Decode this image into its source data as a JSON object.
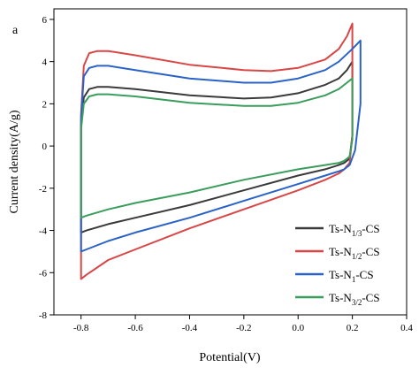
{
  "panel_label": "a",
  "colors": {
    "axis": "#000000",
    "Ts-N1/3-CS": "#3a3a3a",
    "Ts-N1/2-CS": "#d94646",
    "Ts-N1-CS": "#2a62c7",
    "Ts-N3/2-CS": "#3a9d5c"
  },
  "chart_data": {
    "type": "line",
    "title": "",
    "xlabel": "Potential(V)",
    "ylabel": "Current density(A/g)",
    "xlim": [
      -0.9,
      0.4
    ],
    "ylim": [
      -8,
      6.5
    ],
    "xticks": [
      -0.8,
      -0.6,
      -0.4,
      -0.2,
      0.0,
      0.2,
      0.4
    ],
    "xtick_labels": [
      "-0.8",
      "-0.6",
      "-0.4",
      "-0.2",
      "0.0",
      "0.2",
      "0.4"
    ],
    "yticks": [
      -8,
      -6,
      -4,
      -2,
      0,
      2,
      4,
      6
    ],
    "ytick_labels": [
      "-8",
      "-6",
      "-4",
      "-2",
      "0",
      "2",
      "4",
      "6"
    ],
    "grid": false,
    "legend_position": "bottom-right",
    "series": [
      {
        "name": "Ts-N1/3-CS",
        "legend_main": "Ts-N",
        "legend_sub": "1/3",
        "legend_tail": "-CS",
        "x": [
          -0.8,
          -0.79,
          -0.77,
          -0.74,
          -0.7,
          -0.6,
          -0.4,
          -0.2,
          -0.1,
          0.0,
          0.1,
          0.15,
          0.18,
          0.2,
          0.2,
          0.19,
          0.17,
          0.15,
          0.1,
          0.0,
          -0.2,
          -0.4,
          -0.6,
          -0.7,
          -0.78,
          -0.8,
          -0.8
        ],
        "y": [
          1.0,
          2.3,
          2.7,
          2.8,
          2.8,
          2.7,
          2.4,
          2.25,
          2.3,
          2.5,
          2.9,
          3.2,
          3.6,
          4.0,
          0.5,
          -0.6,
          -0.8,
          -0.9,
          -1.1,
          -1.4,
          -2.1,
          -2.8,
          -3.4,
          -3.7,
          -4.0,
          -4.1,
          1.0
        ]
      },
      {
        "name": "Ts-N1/2-CS",
        "legend_main": "Ts-N",
        "legend_sub": "1/2",
        "legend_tail": "-CS",
        "x": [
          -0.8,
          -0.79,
          -0.77,
          -0.74,
          -0.7,
          -0.6,
          -0.4,
          -0.2,
          -0.1,
          0.0,
          0.1,
          0.15,
          0.18,
          0.2,
          0.2,
          0.19,
          0.17,
          0.15,
          0.1,
          0.0,
          -0.2,
          -0.4,
          -0.6,
          -0.7,
          -0.78,
          -0.8,
          -0.8
        ],
        "y": [
          1.5,
          3.8,
          4.4,
          4.5,
          4.5,
          4.3,
          3.85,
          3.6,
          3.55,
          3.7,
          4.1,
          4.6,
          5.2,
          5.8,
          0.5,
          -0.8,
          -1.1,
          -1.3,
          -1.6,
          -2.1,
          -3.0,
          -3.9,
          -4.9,
          -5.4,
          -6.1,
          -6.3,
          1.5
        ]
      },
      {
        "name": "Ts-N1-CS",
        "legend_main": "Ts-N",
        "legend_sub": "1",
        "legend_tail": "-CS",
        "x": [
          -0.8,
          -0.79,
          -0.77,
          -0.74,
          -0.7,
          -0.6,
          -0.4,
          -0.2,
          -0.1,
          0.0,
          0.1,
          0.15,
          0.2,
          0.23,
          0.23,
          0.21,
          0.19,
          0.17,
          0.15,
          0.1,
          0.0,
          -0.2,
          -0.4,
          -0.6,
          -0.7,
          -0.78,
          -0.8,
          -0.8
        ],
        "y": [
          1.3,
          3.3,
          3.7,
          3.8,
          3.8,
          3.6,
          3.2,
          3.0,
          3.0,
          3.2,
          3.6,
          4.0,
          4.6,
          5.0,
          2.0,
          -0.2,
          -0.9,
          -1.1,
          -1.2,
          -1.4,
          -1.8,
          -2.6,
          -3.4,
          -4.1,
          -4.5,
          -4.9,
          -5.0,
          1.3
        ]
      },
      {
        "name": "Ts-N3/2-CS",
        "legend_main": "Ts-N",
        "legend_sub": "3/2",
        "legend_tail": "-CS",
        "x": [
          -0.8,
          -0.79,
          -0.77,
          -0.74,
          -0.7,
          -0.6,
          -0.4,
          -0.2,
          -0.1,
          0.0,
          0.1,
          0.15,
          0.18,
          0.2,
          0.2,
          0.19,
          0.17,
          0.15,
          0.1,
          0.0,
          -0.2,
          -0.4,
          -0.6,
          -0.7,
          -0.78,
          -0.8,
          -0.8
        ],
        "y": [
          0.8,
          2.0,
          2.35,
          2.45,
          2.45,
          2.35,
          2.05,
          1.9,
          1.9,
          2.05,
          2.4,
          2.7,
          3.0,
          3.2,
          0.3,
          -0.5,
          -0.7,
          -0.8,
          -0.9,
          -1.1,
          -1.6,
          -2.2,
          -2.7,
          -3.0,
          -3.3,
          -3.4,
          0.8
        ]
      }
    ]
  }
}
